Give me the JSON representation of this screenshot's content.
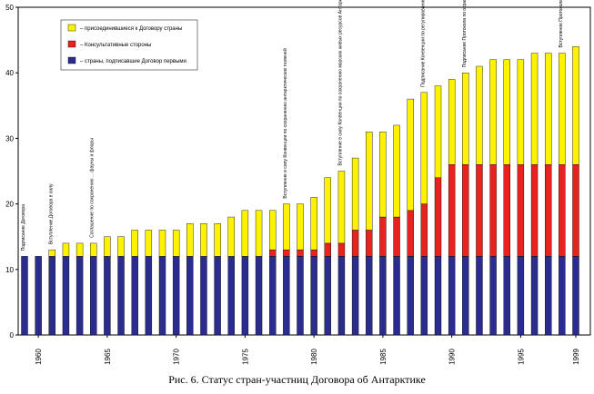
{
  "chart_data": {
    "type": "bar",
    "stacked": true,
    "x": [
      1959,
      1960,
      1961,
      1962,
      1963,
      1964,
      1965,
      1966,
      1967,
      1968,
      1969,
      1970,
      1971,
      1972,
      1973,
      1974,
      1975,
      1976,
      1977,
      1978,
      1979,
      1980,
      1981,
      1982,
      1983,
      1984,
      1985,
      1986,
      1987,
      1988,
      1989,
      1990,
      1991,
      1992,
      1993,
      1994,
      1995,
      1996,
      1997,
      1998,
      1999
    ],
    "xticks": [
      1960,
      1965,
      1970,
      1975,
      1980,
      1985,
      1990,
      1995,
      1999
    ],
    "ylim": [
      0,
      50
    ],
    "yticks": [
      0,
      10,
      20,
      30,
      40,
      50
    ],
    "grid": false,
    "legend_position": "top-left",
    "series": [
      {
        "name": "– страны, подписавшие Договор первыми",
        "color": "#2b2d8e",
        "values": [
          12,
          12,
          12,
          12,
          12,
          12,
          12,
          12,
          12,
          12,
          12,
          12,
          12,
          12,
          12,
          12,
          12,
          12,
          12,
          12,
          12,
          12,
          12,
          12,
          12,
          12,
          12,
          12,
          12,
          12,
          12,
          12,
          12,
          12,
          12,
          12,
          12,
          12,
          12,
          12,
          12
        ]
      },
      {
        "name": "– Консультативные стороны",
        "color": "#e8221e",
        "values": [
          0,
          0,
          0,
          0,
          0,
          0,
          0,
          0,
          0,
          0,
          0,
          0,
          0,
          0,
          0,
          0,
          0,
          0,
          1,
          1,
          1,
          1,
          2,
          2,
          4,
          4,
          6,
          6,
          7,
          8,
          12,
          14,
          14,
          14,
          14,
          14,
          14,
          14,
          14,
          14,
          14
        ]
      },
      {
        "name": "– присоединившиеся к Договору страны",
        "color": "#fef200",
        "values": [
          0,
          0,
          1,
          2,
          2,
          2,
          3,
          3,
          4,
          4,
          4,
          4,
          5,
          5,
          5,
          6,
          7,
          7,
          6,
          7,
          7,
          8,
          10,
          11,
          11,
          15,
          13,
          14,
          17,
          17,
          14,
          13,
          14,
          15,
          16,
          16,
          16,
          17,
          17,
          17,
          18
        ]
      }
    ],
    "annotations": [
      {
        "year": 1959,
        "text": "Подписание Договора"
      },
      {
        "year": 1961,
        "text": "Вступление Договора в силу"
      },
      {
        "year": 1964,
        "text": "Соглашение по сохранению ... фауны и флоры"
      },
      {
        "year": 1978,
        "text": "Вступление в силу Конвенции по сохранению антарктических тюленей"
      },
      {
        "year": 1982,
        "text": "Вступление в силу Конвенции по сохранению морских живых ресурсов Антарктики"
      },
      {
        "year": 1988,
        "text": "Подписание Конвенции по регулированию освоения минеральных ресурсов в Антарктике"
      },
      {
        "year": 1991,
        "text": "Подписание Протокола по охране окружающей среды"
      },
      {
        "year": 1998,
        "text": "Вступление Протокола в силу"
      }
    ]
  },
  "caption": "Рис. 6. Статус стран-участниц Договора об Антарктике"
}
